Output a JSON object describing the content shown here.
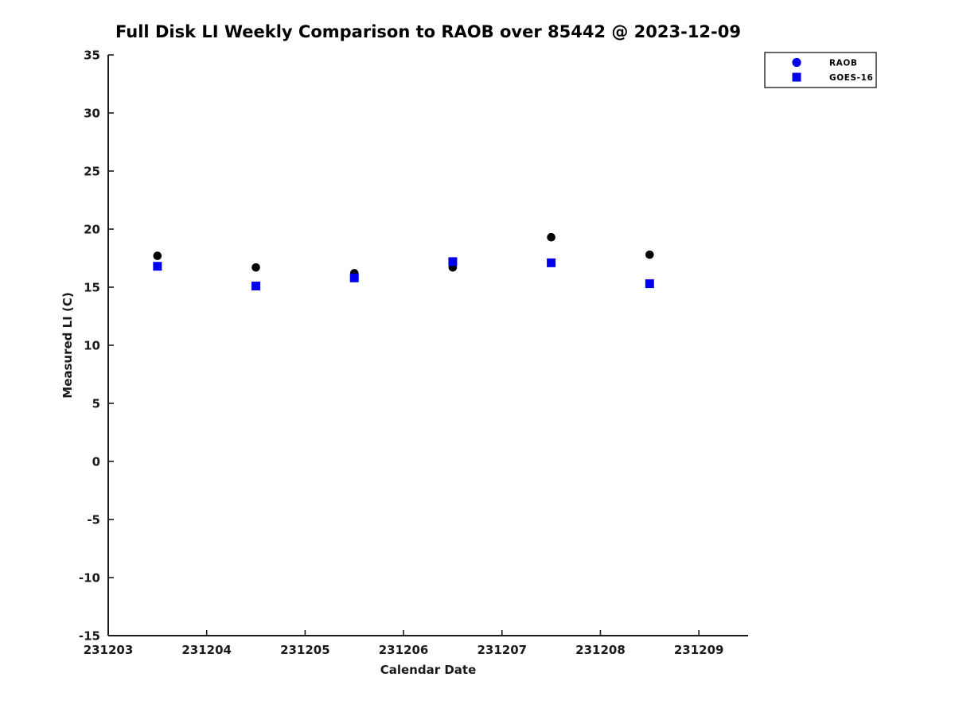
{
  "chart_data": {
    "type": "scatter",
    "title": "Full Disk LI Weekly Comparison to RAOB over 85442 @ 2023-12-09",
    "xlabel": "Calendar Date",
    "ylabel": "Measured LI (C)",
    "xlim": [
      231203,
      231209.5
    ],
    "ylim": [
      -15,
      35
    ],
    "xticks": [
      231203,
      231204,
      231205,
      231206,
      231207,
      231208,
      231209
    ],
    "yticks": [
      -15,
      -10,
      -5,
      0,
      5,
      10,
      15,
      20,
      25,
      30,
      35
    ],
    "grid": false,
    "legend_position": "top-right",
    "x": [
      231203.5,
      231204.5,
      231205.5,
      231206.5,
      231207.5,
      231208.5
    ],
    "series": [
      {
        "name": "RAOB",
        "marker": "circle",
        "color": "#000000",
        "legend_color": "#0000ee",
        "values": [
          17.7,
          16.7,
          16.2,
          16.7,
          19.3,
          17.8
        ]
      },
      {
        "name": "GOES-16",
        "marker": "square",
        "color": "#0000ee",
        "legend_color": "#0000ee",
        "values": [
          16.8,
          15.1,
          15.8,
          17.2,
          17.1,
          15.3
        ]
      }
    ]
  },
  "colors": {
    "axis": "#1a1a1a",
    "background": "#ffffff",
    "marker_blue": "#0000ee",
    "marker_black": "#000000"
  }
}
